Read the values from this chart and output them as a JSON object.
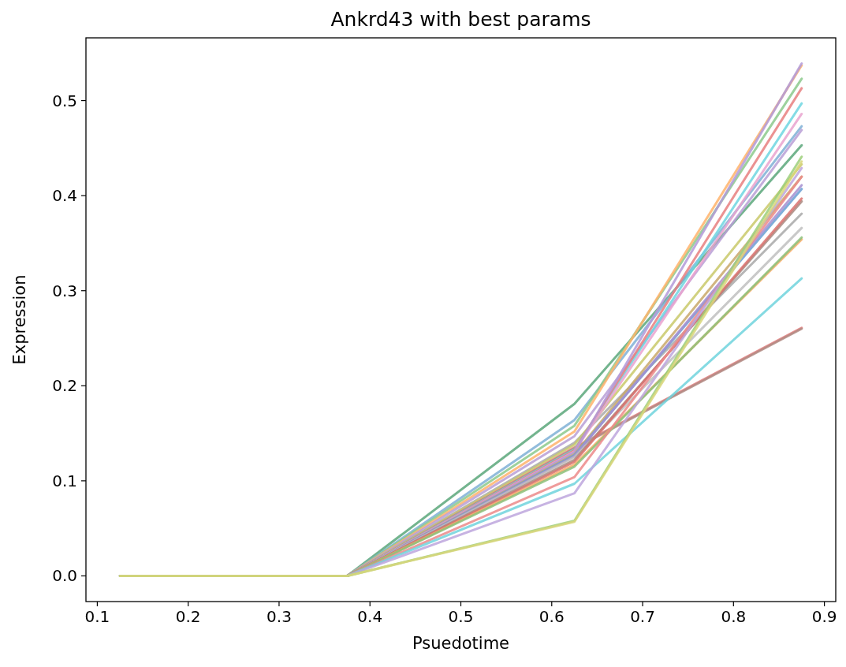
{
  "chart_data": {
    "type": "line",
    "title": "Ankrd43 with best params",
    "xlabel": "Psuedotime",
    "ylabel": "Expression",
    "x": [
      0.125,
      0.375,
      0.625,
      0.875
    ],
    "xlim": [
      0.0875,
      0.9125
    ],
    "xticks": [
      0.1,
      0.2,
      0.3,
      0.4,
      0.5,
      0.6,
      0.7,
      0.8,
      0.9
    ],
    "ylim": [
      -0.027,
      0.566
    ],
    "yticks": [
      {
        "value": 0,
        "label": "0.0"
      },
      0.1,
      0.2,
      0.3,
      0.4,
      0.5
    ],
    "grid": false,
    "marker": "none",
    "line_style": "solid",
    "series": [
      {
        "color": "#5aa77a",
        "values": [
          0,
          0,
          0.181,
          0.453
        ]
      },
      {
        "color": "#7fb0d6",
        "values": [
          0,
          0,
          0.164,
          0.473
        ]
      },
      {
        "color": "#8cc98c",
        "values": [
          0,
          0,
          0.158,
          0.523
        ]
      },
      {
        "color": "#ffb36b",
        "values": [
          0,
          0,
          0.152,
          0.537
        ]
      },
      {
        "color": "#b89fd6",
        "values": [
          0,
          0,
          0.147,
          0.469
        ]
      },
      {
        "color": "#a9a9a9",
        "values": [
          0,
          0,
          0.14,
          0.381
        ]
      },
      {
        "color": "#c9c96a",
        "values": [
          0,
          0,
          0.138,
          0.433
        ]
      },
      {
        "color": "#e07c7c",
        "values": [
          0,
          0,
          0.135,
          0.261
        ]
      },
      {
        "color": "#b08a82",
        "values": [
          0,
          0,
          0.134,
          0.26
        ]
      },
      {
        "color": "#6fd6e0",
        "values": [
          0,
          0,
          0.133,
          0.497
        ]
      },
      {
        "color": "#e87f7f",
        "values": [
          0,
          0,
          0.132,
          0.513
        ]
      },
      {
        "color": "#e9a3cf",
        "values": [
          0,
          0,
          0.131,
          0.486
        ]
      },
      {
        "color": "#b39ad8",
        "values": [
          0,
          0,
          0.13,
          0.539
        ]
      },
      {
        "color": "#c9a86a",
        "values": [
          0,
          0,
          0.128,
          0.42
        ]
      },
      {
        "color": "#6a9fd4",
        "values": [
          0,
          0,
          0.127,
          0.407
        ]
      },
      {
        "color": "#a58fd0",
        "values": [
          0,
          0,
          0.126,
          0.411
        ]
      },
      {
        "color": "#bfbfbf",
        "values": [
          0,
          0,
          0.125,
          0.366
        ]
      },
      {
        "color": "#a9877e",
        "values": [
          0,
          0,
          0.122,
          0.394
        ]
      },
      {
        "color": "#d9726f",
        "values": [
          0,
          0,
          0.12,
          0.397
        ]
      },
      {
        "color": "#f7ad68",
        "values": [
          0,
          0,
          0.117,
          0.354
        ]
      },
      {
        "color": "#8cc079",
        "values": [
          0,
          0,
          0.115,
          0.356
        ]
      },
      {
        "color": "#ec8a8a",
        "values": [
          0,
          0,
          0.104,
          0.42
        ]
      },
      {
        "color": "#70d3dd",
        "values": [
          0,
          0,
          0.097,
          0.313
        ]
      },
      {
        "color": "#bda6dd",
        "values": [
          0,
          0,
          0.087,
          0.429
        ]
      },
      {
        "color": "#9ccf7a",
        "values": [
          0,
          0,
          0.058,
          0.441
        ]
      },
      {
        "color": "#d8d67a",
        "values": [
          0,
          0,
          0.057,
          0.436
        ]
      }
    ]
  }
}
